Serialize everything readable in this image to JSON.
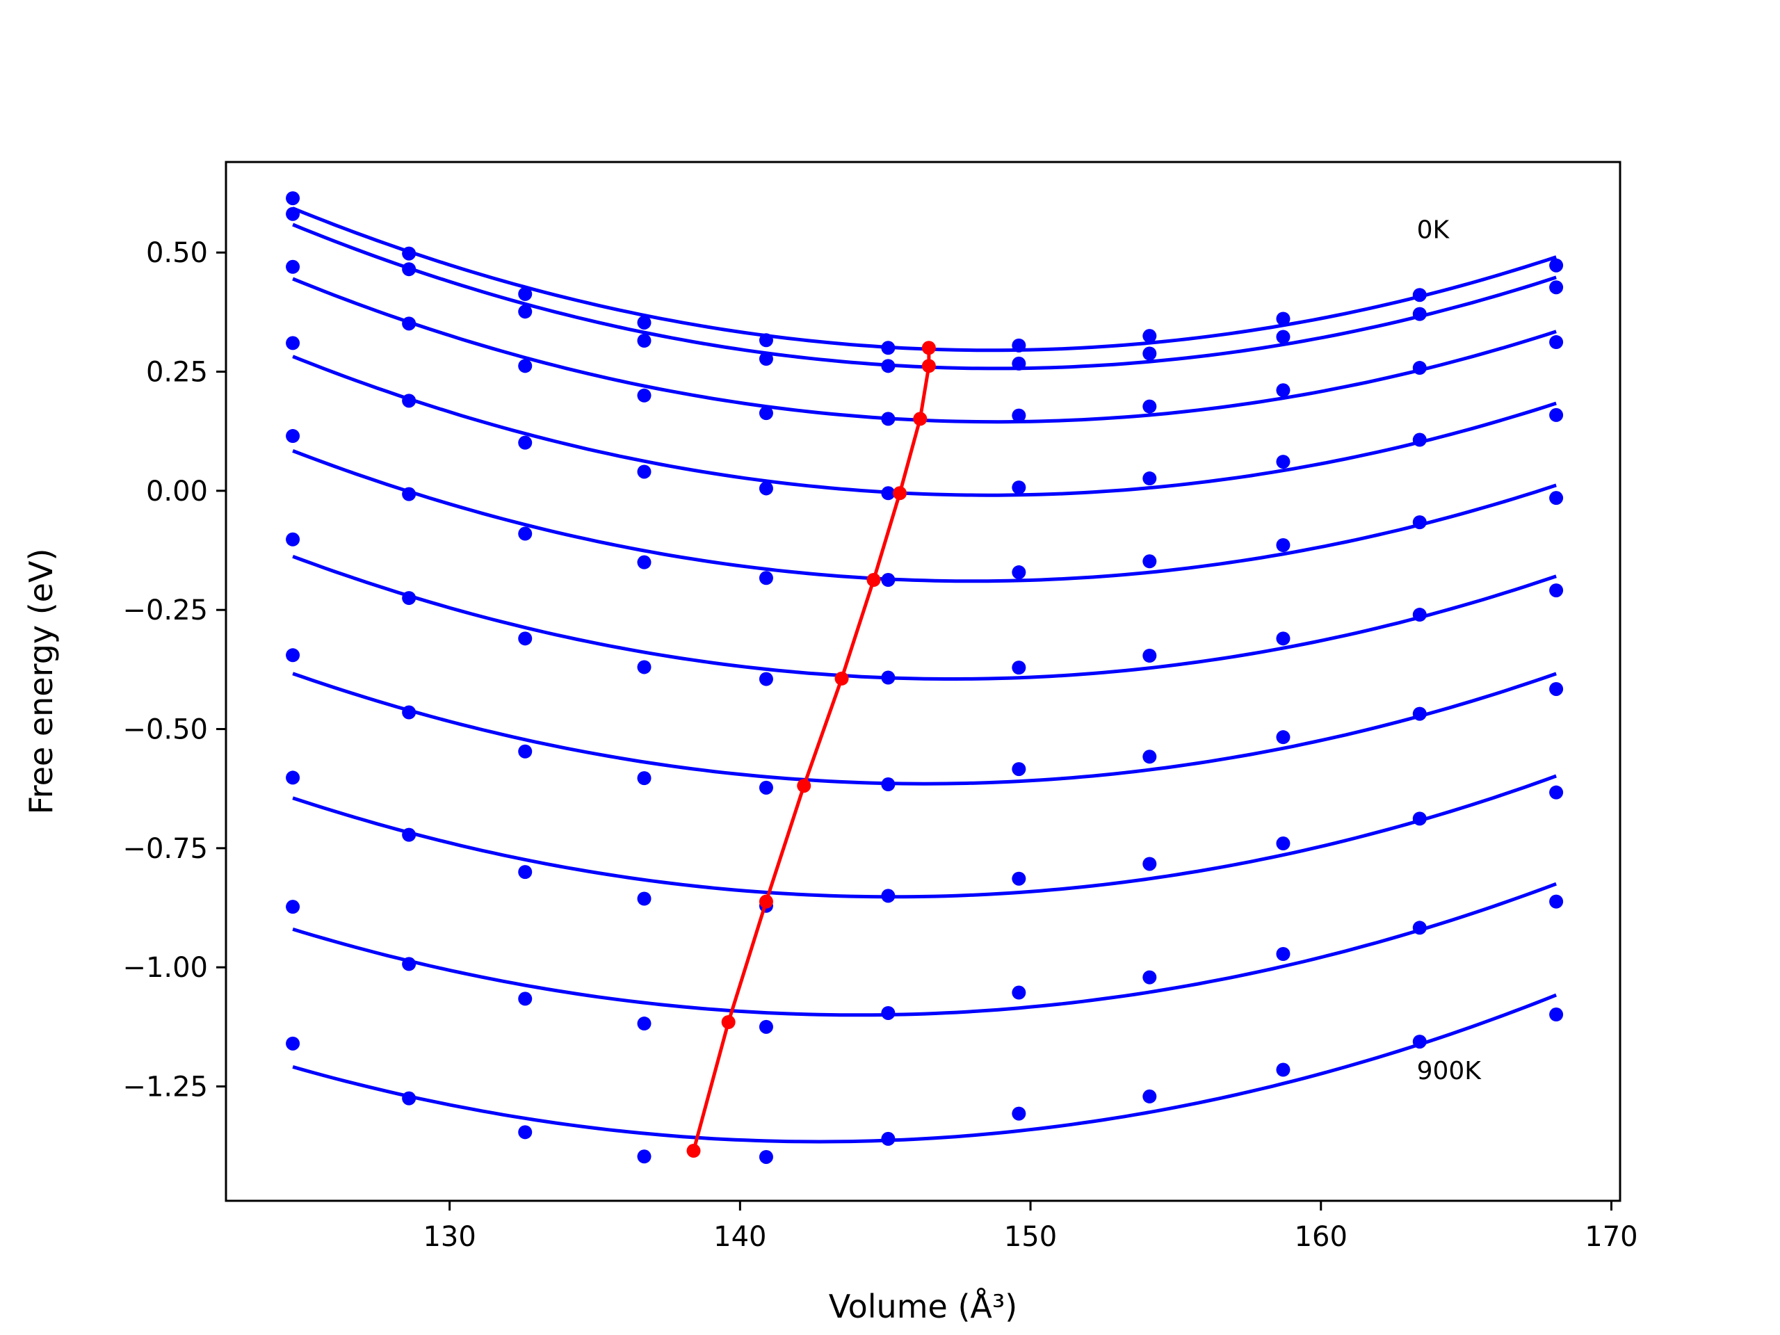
{
  "chart_data": {
    "type": "line",
    "title": "",
    "xlabel": "Volume (Å³)",
    "ylabel": "Free energy (eV)",
    "xlim": [
      122.3,
      170.3
    ],
    "ylim": [
      -1.49,
      0.69
    ],
    "xticks": [
      130,
      140,
      150,
      160,
      170
    ],
    "xtick_labels": [
      "130",
      "140",
      "150",
      "160",
      "170"
    ],
    "yticks": [
      0.5,
      0.25,
      0.0,
      -0.25,
      -0.5,
      -0.75,
      -1.0,
      -1.25
    ],
    "ytick_labels": [
      "0.50",
      "0.25",
      "0.00",
      "−0.25",
      "−0.50",
      "−0.75",
      "−1.00",
      "−1.25"
    ],
    "grid": false,
    "legend": "none",
    "colors": {
      "series": "#0000ff",
      "minimum_line": "#ff0000"
    },
    "annotations": [
      {
        "text": "0K",
        "x": 163.3,
        "y": 0.53
      },
      {
        "text": "900K",
        "x": 163.3,
        "y": -1.235
      }
    ],
    "x": [
      124.6,
      128.6,
      132.6,
      136.7,
      140.9,
      145.1,
      149.6,
      154.1,
      158.7,
      163.4,
      168.1
    ],
    "series": [
      {
        "values": [
          0.614,
          0.498,
          0.413,
          0.353,
          0.316,
          0.3,
          0.305,
          0.325,
          0.361,
          0.411,
          0.473
        ]
      },
      {
        "values": [
          0.581,
          0.465,
          0.376,
          0.315,
          0.277,
          0.262,
          0.267,
          0.288,
          0.323,
          0.371,
          0.427
        ]
      },
      {
        "values": [
          0.47,
          0.351,
          0.262,
          0.2,
          0.163,
          0.151,
          0.158,
          0.177,
          0.211,
          0.258,
          0.312
        ]
      },
      {
        "values": [
          0.31,
          0.189,
          0.101,
          0.04,
          0.005,
          -0.005,
          0.007,
          0.026,
          0.061,
          0.107,
          0.159
        ]
      },
      {
        "values": [
          0.115,
          -0.007,
          -0.09,
          -0.15,
          -0.183,
          -0.187,
          -0.171,
          -0.148,
          -0.114,
          -0.066,
          -0.015
        ]
      },
      {
        "values": [
          -0.102,
          -0.225,
          -0.31,
          -0.37,
          -0.395,
          -0.392,
          -0.371,
          -0.346,
          -0.31,
          -0.26,
          -0.209
        ]
      },
      {
        "values": [
          -0.345,
          -0.465,
          -0.547,
          -0.603,
          -0.623,
          -0.616,
          -0.584,
          -0.558,
          -0.517,
          -0.468,
          -0.416
        ]
      },
      {
        "values": [
          -0.602,
          -0.722,
          -0.8,
          -0.856,
          -0.871,
          -0.85,
          -0.814,
          -0.783,
          -0.74,
          -0.688,
          -0.633
        ]
      },
      {
        "values": [
          -0.873,
          -0.993,
          -1.066,
          -1.118,
          -1.125,
          -1.096,
          -1.053,
          -1.021,
          -0.972,
          -0.917,
          -0.862
        ]
      },
      {
        "values": [
          -1.16,
          -1.275,
          -1.346,
          -1.397,
          -1.398,
          -1.36,
          -1.307,
          -1.271,
          -1.215,
          -1.156,
          -1.099
        ]
      }
    ],
    "minima": [
      {
        "x": 146.5,
        "y": 0.3
      },
      {
        "x": 146.5,
        "y": 0.262
      },
      {
        "x": 146.2,
        "y": 0.151
      },
      {
        "x": 145.5,
        "y": -0.005
      },
      {
        "x": 144.6,
        "y": -0.187
      },
      {
        "x": 143.5,
        "y": -0.394
      },
      {
        "x": 142.2,
        "y": -0.619
      },
      {
        "x": 140.9,
        "y": -0.862
      },
      {
        "x": 139.6,
        "y": -1.115
      },
      {
        "x": 138.4,
        "y": -1.385
      }
    ]
  }
}
